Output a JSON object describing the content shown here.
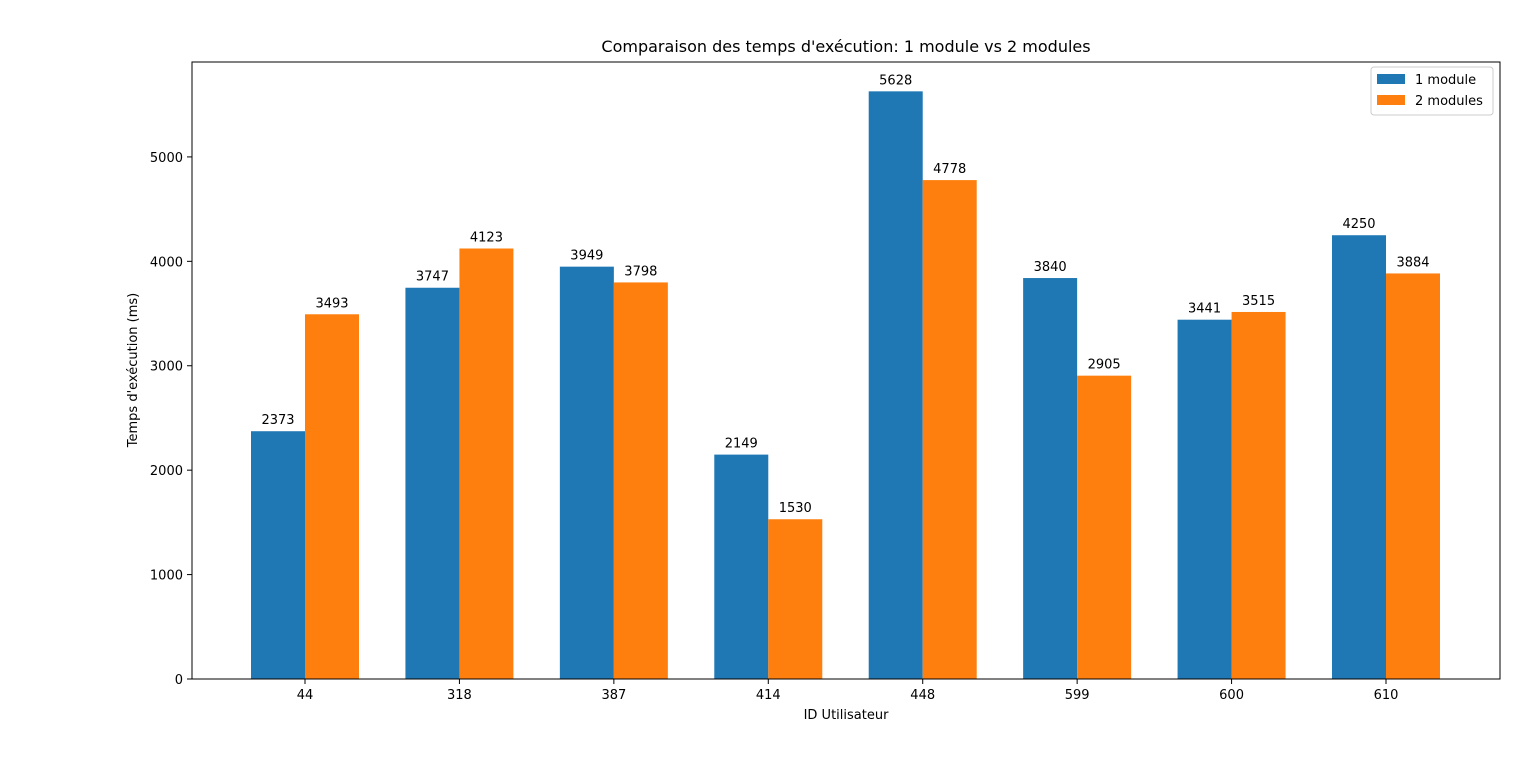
{
  "chart_data": {
    "type": "bar",
    "title": "Comparaison des temps d'exécution: 1 module vs 2 modules",
    "xlabel": "ID Utilisateur",
    "ylabel": "Temps d'exécution (ms)",
    "categories": [
      "44",
      "318",
      "387",
      "414",
      "448",
      "599",
      "600",
      "610"
    ],
    "series": [
      {
        "name": "1 module",
        "color": "#1f77b4",
        "values": [
          2373,
          3747,
          3949,
          2149,
          5628,
          3840,
          3441,
          4250
        ]
      },
      {
        "name": "2 modules",
        "color": "#ff7f0e",
        "values": [
          3493,
          4123,
          3798,
          1530,
          4778,
          2905,
          3515,
          3884
        ]
      }
    ],
    "yticks": [
      0,
      1000,
      2000,
      3000,
      4000,
      5000
    ],
    "ylim": [
      0,
      5909
    ],
    "grid": false,
    "legend_position": "top-right",
    "data_labels": true
  }
}
